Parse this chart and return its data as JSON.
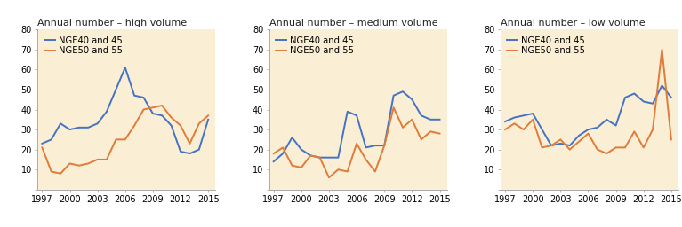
{
  "years": [
    1997,
    1998,
    1999,
    2000,
    2001,
    2002,
    2003,
    2004,
    2005,
    2006,
    2007,
    2008,
    2009,
    2010,
    2011,
    2012,
    2013,
    2014,
    2015
  ],
  "high_blue": [
    23,
    25,
    33,
    30,
    31,
    31,
    33,
    39,
    50,
    61,
    47,
    46,
    38,
    37,
    32,
    19,
    18,
    20,
    35
  ],
  "high_orange": [
    21,
    9,
    8,
    13,
    12,
    13,
    15,
    15,
    25,
    25,
    32,
    40,
    41,
    42,
    36,
    32,
    23,
    33,
    37
  ],
  "med_blue": [
    14,
    18,
    26,
    20,
    17,
    16,
    16,
    16,
    39,
    37,
    21,
    22,
    22,
    47,
    49,
    45,
    37,
    35,
    35
  ],
  "med_orange": [
    18,
    21,
    12,
    11,
    17,
    16,
    6,
    10,
    9,
    23,
    15,
    9,
    22,
    41,
    31,
    35,
    25,
    29,
    28
  ],
  "low_blue": [
    34,
    36,
    37,
    38,
    30,
    22,
    23,
    22,
    27,
    30,
    31,
    35,
    32,
    46,
    48,
    44,
    43,
    52,
    46
  ],
  "low_orange": [
    30,
    33,
    30,
    35,
    21,
    22,
    25,
    20,
    24,
    28,
    20,
    18,
    21,
    21,
    29,
    21,
    30,
    70,
    25
  ],
  "titles": [
    "Annual number – high volume",
    "Annual number – medium volume",
    "Annual number – low volume"
  ],
  "legend_blue": "NGE40 and 45",
  "legend_orange": "NGE50 and 55",
  "blue_color": "#4472c4",
  "orange_color": "#e07b39",
  "bg_color": "#faefd4",
  "fig_bg": "#ffffff",
  "ylim": [
    0,
    80
  ],
  "yticks": [
    0,
    10,
    20,
    30,
    40,
    50,
    60,
    70,
    80
  ],
  "xtick_years": [
    1997,
    2000,
    2003,
    2006,
    2009,
    2012,
    2015
  ]
}
